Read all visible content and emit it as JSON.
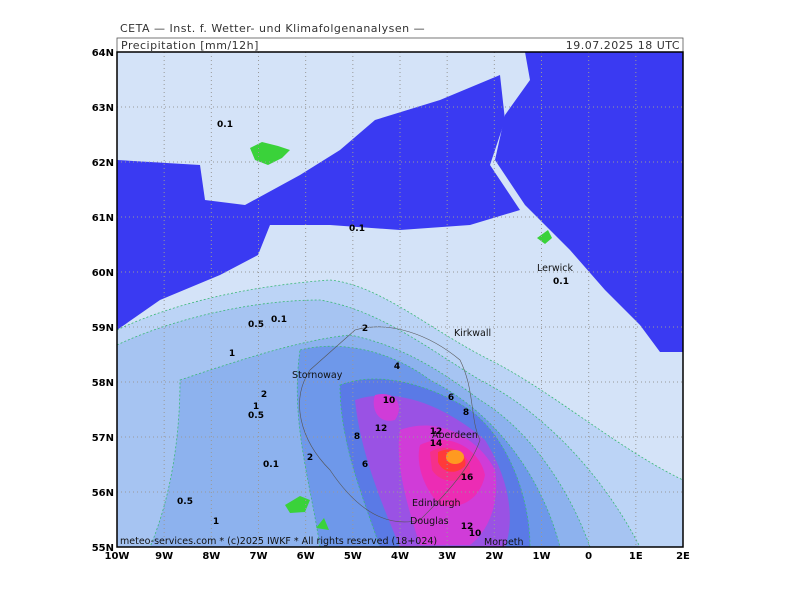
{
  "header": {
    "title": "CETA — Inst. f. Wetter- und Klimafolgenanalysen —",
    "field": "Precipitation [mm/12h]",
    "valid": "19.07.2025 18 UTC"
  },
  "map": {
    "lat_labels": [
      "64N",
      "63N",
      "62N",
      "61N",
      "60N",
      "59N",
      "58N",
      "57N",
      "56N",
      "55N"
    ],
    "lon_labels": [
      "10W",
      "9W",
      "8W",
      "7W",
      "6W",
      "5W",
      "4W",
      "3W",
      "2W",
      "1W",
      "0",
      "1E",
      "2E"
    ],
    "contour_labels": [
      "0.1",
      "0.1",
      "0.1",
      "0.1",
      "0.5",
      "2",
      "1",
      "4",
      "2",
      "10",
      "6",
      "1",
      "0.5",
      "8",
      "12",
      "12",
      "8",
      "14",
      "6",
      "0.1",
      "2",
      "16",
      "0.5",
      "1",
      "12",
      "10"
    ],
    "places": [
      "Lerwick",
      "Kirkwall",
      "Stornoway",
      "Aberdeen",
      "Edinburgh",
      "Douglas",
      "Morpeth"
    ]
  },
  "footer": "meteo-services.com * (c)2025 IWKF * All rights reserved (18+024)"
}
